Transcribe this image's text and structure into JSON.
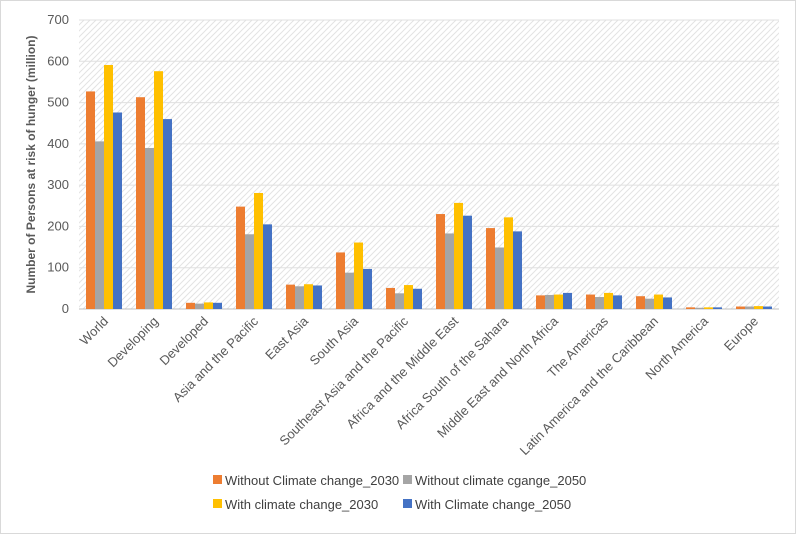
{
  "chart_data": {
    "type": "bar",
    "title": "",
    "xlabel": "",
    "ylabel": "Number of Persons at risk of hunger (million)",
    "ylim": [
      0,
      700
    ],
    "yticks": [
      0,
      100,
      200,
      300,
      400,
      500,
      600,
      700
    ],
    "grid": true,
    "legend_position": "bottom",
    "categories": [
      "World",
      "Developing",
      "Developed",
      "Asia and the Pacific",
      "East Asia",
      "South Asia",
      "Southeast Asia and the Pacific",
      "Africa and the Middle East",
      "Africa South of the Sahara",
      "Middle East and North Africa",
      "The Americas",
      "Latin America and the Caribbean",
      "North America",
      "Europe"
    ],
    "series": [
      {
        "name": "Without Climate change_2030",
        "color": "#ED7D31",
        "values": [
          527,
          513,
          15,
          248,
          59,
          137,
          51,
          230,
          196,
          33,
          35,
          31,
          4,
          6
        ]
      },
      {
        "name": "Without climate cgange_2050",
        "color": "#A5A5A5",
        "values": [
          406,
          390,
          13,
          181,
          55,
          88,
          38,
          183,
          149,
          34,
          29,
          25,
          3,
          6
        ]
      },
      {
        "name": "With climate change_2030",
        "color": "#FFC000",
        "values": [
          591,
          576,
          16,
          281,
          60,
          161,
          58,
          257,
          222,
          35,
          39,
          35,
          4,
          7
        ]
      },
      {
        "name": "With Climate change_2050",
        "color": "#4472C4",
        "values": [
          476,
          460,
          15,
          205,
          57,
          97,
          49,
          226,
          188,
          39,
          33,
          28,
          4,
          6
        ]
      }
    ]
  }
}
